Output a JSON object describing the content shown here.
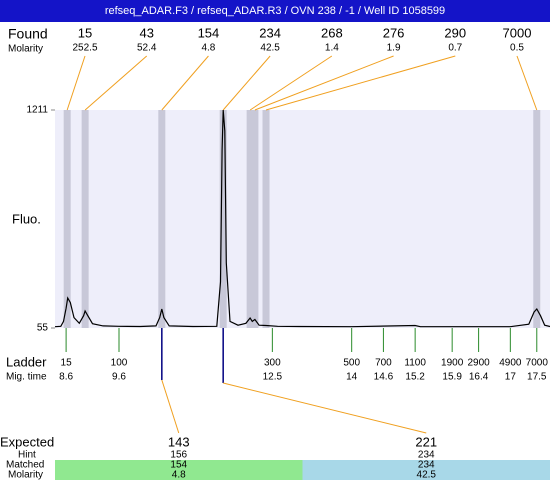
{
  "header": {
    "title": "refseq_ADAR.F3 / refseq_ADAR.R3 / OVN 238 / -1 / Well ID 1058599"
  },
  "found": {
    "label": "Found",
    "molarity_label": "Molarity",
    "sizes": [
      15,
      43,
      154,
      234,
      268,
      276,
      290,
      7000
    ],
    "molarity": [
      252.5,
      52.4,
      4.8,
      42.5,
      1.4,
      1.9,
      0.7,
      0.5
    ],
    "peak_times": [
      8.62,
      8.96,
      10.41,
      11.57,
      12.08,
      12.17,
      12.38,
      17.5
    ]
  },
  "axis": {
    "label": "Fluo.",
    "xlim": [
      8.39,
      17.75
    ],
    "ylim": [
      55,
      1211
    ],
    "yticks": [
      1211,
      55
    ]
  },
  "trace": {
    "x": [
      8.39,
      8.5,
      8.55,
      8.6,
      8.63,
      8.68,
      8.75,
      8.85,
      8.93,
      8.96,
      9.0,
      9.1,
      9.3,
      9.6,
      10.0,
      10.3,
      10.37,
      10.41,
      10.45,
      10.55,
      11.0,
      11.45,
      11.52,
      11.55,
      11.57,
      11.6,
      11.63,
      11.7,
      11.85,
      12.0,
      12.08,
      12.12,
      12.17,
      12.25,
      12.38,
      12.6,
      13.0,
      14.0,
      15.2,
      15.3,
      16.0,
      17.0,
      17.35,
      17.45,
      17.5,
      17.57,
      17.65,
      17.75
    ],
    "y": [
      62,
      64,
      90,
      160,
      214,
      190,
      110,
      80,
      120,
      145,
      125,
      78,
      66,
      64,
      63,
      66,
      110,
      156,
      110,
      66,
      63,
      64,
      300,
      1000,
      1211,
      1100,
      400,
      90,
      70,
      80,
      108,
      90,
      100,
      70,
      68,
      64,
      63,
      62,
      68,
      62,
      62,
      62,
      75,
      140,
      156,
      120,
      70,
      63
    ]
  },
  "ladder": {
    "label": "Ladder",
    "time_label": "Mig. time",
    "sizes": [
      15,
      100,
      300,
      500,
      700,
      1100,
      1900,
      2900,
      4900,
      7000
    ],
    "times": [
      8.6,
      9.6,
      12.5,
      14,
      14.6,
      15.2,
      15.9,
      16.4,
      17,
      17.5
    ]
  },
  "expected": {
    "label": "Expected",
    "hint_label": "Hint",
    "matched_label": "Matched",
    "molarity_label": "Molarity",
    "items": [
      {
        "expected": 143,
        "hint": 156,
        "matched": 154,
        "molarity": 4.8
      },
      {
        "expected": 221,
        "hint": 234,
        "matched": 234,
        "molarity": 42.5
      }
    ]
  }
}
